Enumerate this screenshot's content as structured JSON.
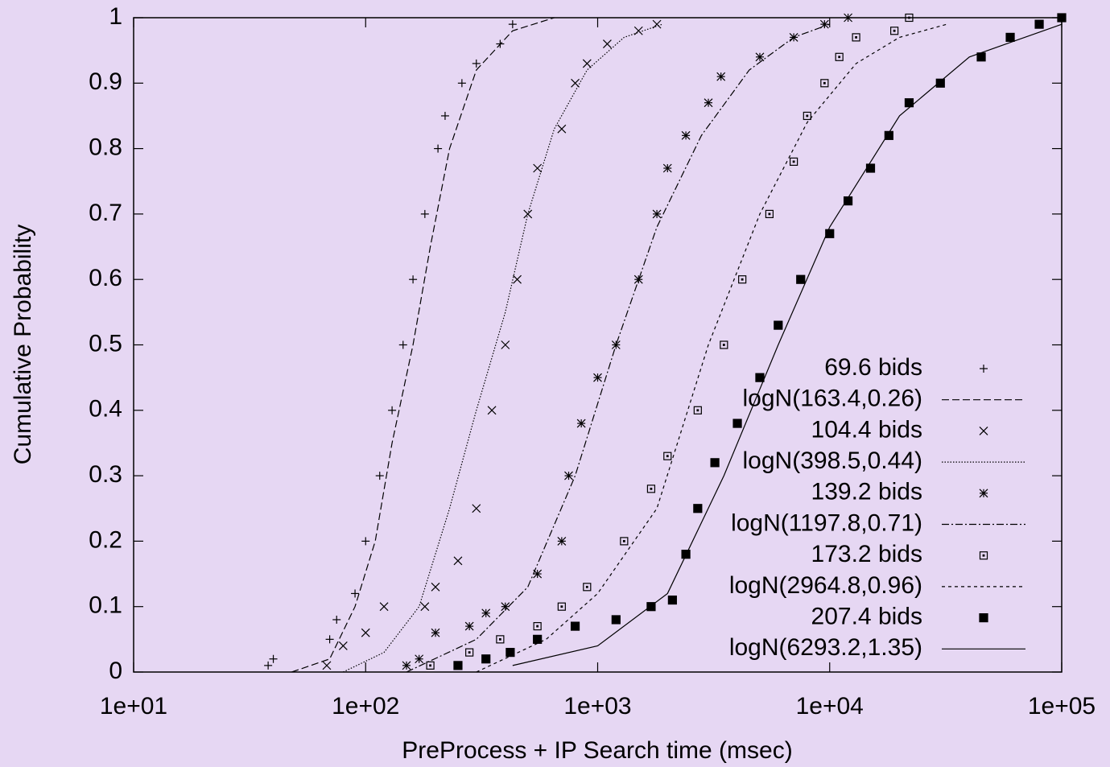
{
  "chart_data": {
    "type": "line",
    "xlabel": "PreProcess + IP Search time (msec)",
    "ylabel": "Cumulative Probability",
    "xscale": "log",
    "xlim": [
      10,
      100000
    ],
    "ylim": [
      0,
      1
    ],
    "xticks": [
      {
        "value": 10,
        "label": "1e+01"
      },
      {
        "value": 100,
        "label": "1e+02"
      },
      {
        "value": 1000,
        "label": "1e+03"
      },
      {
        "value": 10000,
        "label": "1e+04"
      },
      {
        "value": 100000,
        "label": "1e+05"
      }
    ],
    "yticks": [
      0,
      0.1,
      0.2,
      0.3,
      0.4,
      0.5,
      0.6,
      0.7,
      0.8,
      0.9,
      1
    ],
    "legend": "right",
    "series": [
      {
        "name": "69.6 bids",
        "style": "plus",
        "color": "#000000",
        "x": [
          38,
          40,
          70,
          75,
          90,
          100,
          115,
          130,
          145,
          160,
          180,
          205,
          220,
          260,
          300,
          380,
          430
        ],
        "values": [
          0.01,
          0.02,
          0.05,
          0.08,
          0.12,
          0.2,
          0.3,
          0.4,
          0.5,
          0.6,
          0.7,
          0.8,
          0.85,
          0.9,
          0.93,
          0.96,
          0.99
        ]
      },
      {
        "name": "logN(163.4,0.26)",
        "style": "dashed",
        "color": "#000000",
        "x": [
          48,
          70,
          90,
          110,
          130,
          160,
          190,
          230,
          300,
          430,
          650
        ],
        "values": [
          0,
          0.02,
          0.1,
          0.2,
          0.35,
          0.5,
          0.65,
          0.8,
          0.92,
          0.98,
          1
        ]
      },
      {
        "name": "104.4 bids",
        "style": "cross",
        "color": "#000000",
        "x": [
          68,
          80,
          100,
          120,
          180,
          200,
          250,
          300,
          350,
          400,
          450,
          500,
          550,
          700,
          800,
          900,
          1100,
          1500,
          1800
        ],
        "values": [
          0.01,
          0.04,
          0.06,
          0.1,
          0.1,
          0.13,
          0.17,
          0.25,
          0.4,
          0.5,
          0.6,
          0.7,
          0.77,
          0.83,
          0.9,
          0.93,
          0.96,
          0.98,
          0.99
        ]
      },
      {
        "name": "logN(398.5,0.44)",
        "style": "dotted",
        "color": "#000000",
        "x": [
          80,
          120,
          170,
          230,
          300,
          400,
          500,
          650,
          900,
          1300,
          1900
        ],
        "values": [
          0,
          0.03,
          0.1,
          0.25,
          0.4,
          0.55,
          0.7,
          0.83,
          0.92,
          0.97,
          0.99
        ]
      },
      {
        "name": "139.2 bids",
        "style": "star",
        "color": "#000000",
        "x": [
          150,
          170,
          200,
          280,
          330,
          400,
          550,
          700,
          750,
          850,
          1000,
          1200,
          1500,
          1800,
          2000,
          2400,
          3000,
          3400,
          5000,
          7000,
          9500,
          12000
        ],
        "values": [
          0.01,
          0.02,
          0.06,
          0.07,
          0.09,
          0.1,
          0.15,
          0.2,
          0.3,
          0.38,
          0.45,
          0.5,
          0.6,
          0.7,
          0.77,
          0.82,
          0.87,
          0.91,
          0.94,
          0.97,
          0.99,
          1
        ]
      },
      {
        "name": "logN(1197.8,0.71)",
        "style": "dashdot",
        "color": "#000000",
        "x": [
          150,
          300,
          500,
          800,
          1200,
          1800,
          2800,
          4500,
          7000,
          10000
        ],
        "values": [
          0,
          0.05,
          0.13,
          0.3,
          0.5,
          0.68,
          0.82,
          0.92,
          0.97,
          0.99
        ]
      },
      {
        "name": "173.2 bids",
        "style": "dotsquare",
        "color": "#000000",
        "x": [
          190,
          280,
          380,
          550,
          700,
          900,
          1300,
          1700,
          2000,
          2700,
          3500,
          4200,
          5500,
          7000,
          8000,
          9500,
          11000,
          13000,
          19000,
          22000
        ],
        "values": [
          0.01,
          0.03,
          0.05,
          0.07,
          0.1,
          0.13,
          0.2,
          0.28,
          0.33,
          0.4,
          0.5,
          0.6,
          0.7,
          0.78,
          0.85,
          0.9,
          0.94,
          0.97,
          0.98,
          1
        ]
      },
      {
        "name": "logN(2964.8,0.96)",
        "style": "shortdash",
        "color": "#000000",
        "x": [
          300,
          600,
          1000,
          1800,
          3000,
          5000,
          8000,
          13000,
          20000,
          32000
        ],
        "values": [
          0,
          0.05,
          0.12,
          0.25,
          0.5,
          0.7,
          0.84,
          0.93,
          0.97,
          0.99
        ]
      },
      {
        "name": "207.4 bids",
        "style": "square",
        "color": "#000000",
        "x": [
          250,
          330,
          420,
          550,
          800,
          1200,
          1700,
          2100,
          2400,
          2700,
          3200,
          4000,
          5000,
          6000,
          7500,
          10000,
          12000,
          15000,
          18000,
          22000,
          30000,
          45000,
          60000,
          80000,
          100000
        ],
        "values": [
          0.01,
          0.02,
          0.03,
          0.05,
          0.07,
          0.08,
          0.1,
          0.11,
          0.18,
          0.25,
          0.32,
          0.38,
          0.45,
          0.53,
          0.6,
          0.67,
          0.72,
          0.77,
          0.82,
          0.87,
          0.9,
          0.94,
          0.97,
          0.99,
          1
        ]
      },
      {
        "name": "logN(6293.2,1.35)",
        "style": "solid",
        "color": "#000000",
        "x": [
          430,
          1000,
          2000,
          3500,
          6000,
          10000,
          20000,
          40000,
          100000
        ],
        "values": [
          0.01,
          0.04,
          0.12,
          0.3,
          0.5,
          0.68,
          0.85,
          0.94,
          0.99
        ]
      }
    ]
  }
}
